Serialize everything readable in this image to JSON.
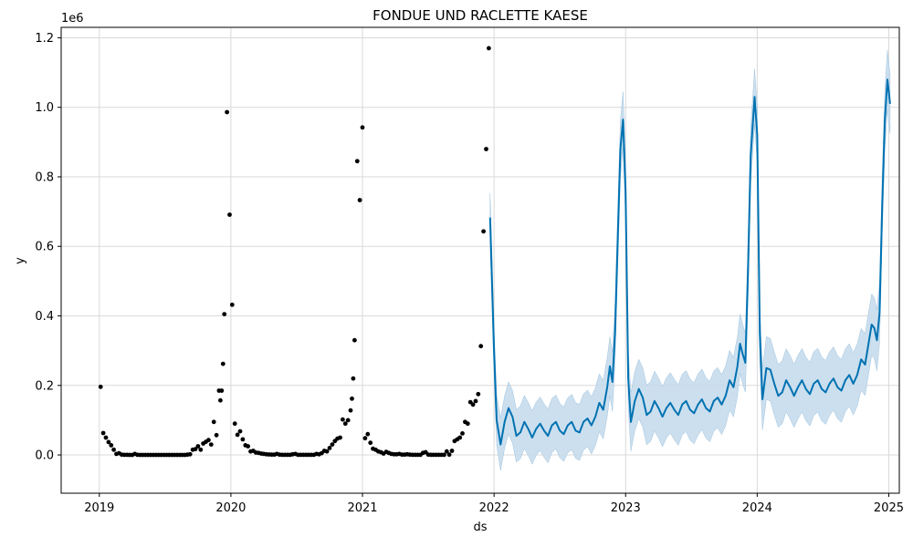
{
  "chart_data": {
    "type": "scatter",
    "title": "FONDUE UND RACLETTE KAESE",
    "xlabel": "ds",
    "ylabel": "y",
    "y_offset_label": "1e6",
    "x_tick_labels": [
      "2019",
      "2020",
      "2021",
      "2022",
      "2023",
      "2024",
      "2025"
    ],
    "x_ticks": [
      2019,
      2020,
      2021,
      2022,
      2023,
      2024,
      2025
    ],
    "y_tick_labels": [
      "0.0",
      "0.2",
      "0.4",
      "0.6",
      "0.8",
      "1.0",
      "1.2"
    ],
    "y_ticks": [
      0,
      200000,
      400000,
      600000,
      800000,
      1000000,
      1200000
    ],
    "xlim": [
      2018.71,
      2025.08
    ],
    "ylim": [
      -110000,
      1230000
    ],
    "grid": true,
    "colors": {
      "observed": "#000000",
      "forecast": "#0072B2",
      "interval": "#c7dcec"
    },
    "series": [
      {
        "kind": "observed",
        "style": "points",
        "points": [
          [
            2019.01,
            196000
          ],
          [
            2019.03,
            63000
          ],
          [
            2019.05,
            50000
          ],
          [
            2019.07,
            37000
          ],
          [
            2019.09,
            28000
          ],
          [
            2019.11,
            15000
          ],
          [
            2019.13,
            3000
          ],
          [
            2019.15,
            5000
          ],
          [
            2019.17,
            1000
          ],
          [
            2019.19,
            500
          ],
          [
            2019.21,
            300
          ],
          [
            2019.23,
            200
          ],
          [
            2019.25,
            100
          ],
          [
            2019.27,
            3000
          ],
          [
            2019.29,
            300
          ],
          [
            2019.31,
            100
          ],
          [
            2019.33,
            100
          ],
          [
            2019.35,
            100
          ],
          [
            2019.37,
            100
          ],
          [
            2019.39,
            100
          ],
          [
            2019.41,
            100
          ],
          [
            2019.43,
            100
          ],
          [
            2019.45,
            100
          ],
          [
            2019.47,
            100
          ],
          [
            2019.49,
            100
          ],
          [
            2019.51,
            100
          ],
          [
            2019.53,
            100
          ],
          [
            2019.55,
            100
          ],
          [
            2019.57,
            100
          ],
          [
            2019.59,
            100
          ],
          [
            2019.61,
            100
          ],
          [
            2019.63,
            100
          ],
          [
            2019.65,
            100
          ],
          [
            2019.67,
            1000
          ],
          [
            2019.69,
            2000
          ],
          [
            2019.71,
            15000
          ],
          [
            2019.73,
            17000
          ],
          [
            2019.75,
            25000
          ],
          [
            2019.77,
            15000
          ],
          [
            2019.79,
            33000
          ],
          [
            2019.81,
            38000
          ],
          [
            2019.83,
            43000
          ],
          [
            2019.85,
            30000
          ],
          [
            2019.87,
            95000
          ],
          [
            2019.89,
            57000
          ],
          [
            2019.91,
            185000
          ],
          [
            2019.92,
            157000
          ],
          [
            2019.93,
            185000
          ],
          [
            2019.94,
            262000
          ],
          [
            2019.95,
            405000
          ],
          [
            2019.97,
            986000
          ],
          [
            2019.99,
            691000
          ],
          [
            2020.01,
            432000
          ],
          [
            2020.03,
            90000
          ],
          [
            2020.05,
            58000
          ],
          [
            2020.07,
            68000
          ],
          [
            2020.09,
            45000
          ],
          [
            2020.11,
            28000
          ],
          [
            2020.13,
            25000
          ],
          [
            2020.15,
            10000
          ],
          [
            2020.17,
            12000
          ],
          [
            2020.19,
            7000
          ],
          [
            2020.21,
            6000
          ],
          [
            2020.23,
            4000
          ],
          [
            2020.25,
            3000
          ],
          [
            2020.27,
            2000
          ],
          [
            2020.29,
            1500
          ],
          [
            2020.31,
            1000
          ],
          [
            2020.33,
            1000
          ],
          [
            2020.35,
            3000
          ],
          [
            2020.37,
            1000
          ],
          [
            2020.39,
            500
          ],
          [
            2020.41,
            500
          ],
          [
            2020.43,
            500
          ],
          [
            2020.45,
            500
          ],
          [
            2020.47,
            2000
          ],
          [
            2020.49,
            3000
          ],
          [
            2020.51,
            500
          ],
          [
            2020.53,
            500
          ],
          [
            2020.55,
            500
          ],
          [
            2020.57,
            500
          ],
          [
            2020.59,
            500
          ],
          [
            2020.61,
            500
          ],
          [
            2020.63,
            500
          ],
          [
            2020.65,
            3000
          ],
          [
            2020.67,
            2000
          ],
          [
            2020.69,
            5000
          ],
          [
            2020.71,
            12000
          ],
          [
            2020.73,
            10000
          ],
          [
            2020.75,
            20000
          ],
          [
            2020.77,
            30000
          ],
          [
            2020.79,
            40000
          ],
          [
            2020.81,
            47000
          ],
          [
            2020.83,
            50000
          ],
          [
            2020.85,
            102000
          ],
          [
            2020.87,
            90000
          ],
          [
            2020.89,
            100000
          ],
          [
            2020.91,
            128000
          ],
          [
            2020.92,
            162000
          ],
          [
            2020.93,
            220000
          ],
          [
            2020.94,
            330000
          ],
          [
            2020.96,
            845000
          ],
          [
            2020.98,
            733000
          ],
          [
            2021.0,
            942000
          ],
          [
            2021.02,
            48000
          ],
          [
            2021.04,
            60000
          ],
          [
            2021.06,
            35000
          ],
          [
            2021.08,
            18000
          ],
          [
            2021.1,
            15000
          ],
          [
            2021.12,
            10000
          ],
          [
            2021.14,
            8000
          ],
          [
            2021.16,
            4000
          ],
          [
            2021.18,
            9000
          ],
          [
            2021.2,
            6000
          ],
          [
            2021.22,
            3000
          ],
          [
            2021.24,
            2000
          ],
          [
            2021.26,
            2000
          ],
          [
            2021.28,
            3000
          ],
          [
            2021.3,
            1000
          ],
          [
            2021.32,
            1000
          ],
          [
            2021.34,
            2000
          ],
          [
            2021.36,
            1000
          ],
          [
            2021.38,
            500
          ],
          [
            2021.4,
            500
          ],
          [
            2021.42,
            500
          ],
          [
            2021.44,
            500
          ],
          [
            2021.46,
            6000
          ],
          [
            2021.48,
            8000
          ],
          [
            2021.5,
            1000
          ],
          [
            2021.52,
            500
          ],
          [
            2021.54,
            500
          ],
          [
            2021.56,
            500
          ],
          [
            2021.58,
            500
          ],
          [
            2021.6,
            500
          ],
          [
            2021.62,
            500
          ],
          [
            2021.64,
            10000
          ],
          [
            2021.66,
            1000
          ],
          [
            2021.68,
            12000
          ],
          [
            2021.7,
            40000
          ],
          [
            2021.72,
            45000
          ],
          [
            2021.74,
            50000
          ],
          [
            2021.76,
            62000
          ],
          [
            2021.78,
            95000
          ],
          [
            2021.8,
            90000
          ],
          [
            2021.82,
            152000
          ],
          [
            2021.84,
            145000
          ],
          [
            2021.86,
            155000
          ],
          [
            2021.88,
            175000
          ],
          [
            2021.9,
            313000
          ],
          [
            2021.92,
            643000
          ],
          [
            2021.94,
            880000
          ],
          [
            2021.96,
            1170000
          ]
        ]
      },
      {
        "kind": "forecast",
        "style": "line",
        "points": [
          [
            2021.97,
            683000
          ],
          [
            2022.0,
            300000
          ],
          [
            2022.02,
            100000
          ],
          [
            2022.05,
            30000
          ],
          [
            2022.08,
            95000
          ],
          [
            2022.11,
            135000
          ],
          [
            2022.14,
            110000
          ],
          [
            2022.17,
            55000
          ],
          [
            2022.2,
            65000
          ],
          [
            2022.23,
            95000
          ],
          [
            2022.26,
            75000
          ],
          [
            2022.29,
            50000
          ],
          [
            2022.32,
            75000
          ],
          [
            2022.35,
            90000
          ],
          [
            2022.38,
            70000
          ],
          [
            2022.41,
            55000
          ],
          [
            2022.44,
            85000
          ],
          [
            2022.47,
            95000
          ],
          [
            2022.5,
            70000
          ],
          [
            2022.53,
            60000
          ],
          [
            2022.56,
            85000
          ],
          [
            2022.59,
            95000
          ],
          [
            2022.62,
            70000
          ],
          [
            2022.65,
            65000
          ],
          [
            2022.68,
            95000
          ],
          [
            2022.71,
            105000
          ],
          [
            2022.74,
            85000
          ],
          [
            2022.77,
            110000
          ],
          [
            2022.8,
            150000
          ],
          [
            2022.83,
            130000
          ],
          [
            2022.86,
            195000
          ],
          [
            2022.88,
            255000
          ],
          [
            2022.9,
            210000
          ],
          [
            2022.92,
            355000
          ],
          [
            2022.94,
            620000
          ],
          [
            2022.96,
            880000
          ],
          [
            2022.98,
            965000
          ],
          [
            2023.0,
            760000
          ],
          [
            2023.02,
            220000
          ],
          [
            2023.04,
            95000
          ],
          [
            2023.07,
            155000
          ],
          [
            2023.1,
            190000
          ],
          [
            2023.13,
            165000
          ],
          [
            2023.16,
            115000
          ],
          [
            2023.19,
            125000
          ],
          [
            2023.22,
            155000
          ],
          [
            2023.25,
            135000
          ],
          [
            2023.28,
            110000
          ],
          [
            2023.31,
            135000
          ],
          [
            2023.34,
            150000
          ],
          [
            2023.37,
            130000
          ],
          [
            2023.4,
            115000
          ],
          [
            2023.43,
            145000
          ],
          [
            2023.46,
            155000
          ],
          [
            2023.49,
            130000
          ],
          [
            2023.52,
            120000
          ],
          [
            2023.55,
            145000
          ],
          [
            2023.58,
            160000
          ],
          [
            2023.61,
            135000
          ],
          [
            2023.64,
            125000
          ],
          [
            2023.67,
            155000
          ],
          [
            2023.7,
            165000
          ],
          [
            2023.73,
            145000
          ],
          [
            2023.76,
            170000
          ],
          [
            2023.79,
            215000
          ],
          [
            2023.82,
            195000
          ],
          [
            2023.85,
            255000
          ],
          [
            2023.87,
            320000
          ],
          [
            2023.89,
            290000
          ],
          [
            2023.91,
            265000
          ],
          [
            2023.93,
            530000
          ],
          [
            2023.95,
            860000
          ],
          [
            2023.98,
            1030000
          ],
          [
            2024.0,
            920000
          ],
          [
            2024.02,
            350000
          ],
          [
            2024.04,
            160000
          ],
          [
            2024.07,
            250000
          ],
          [
            2024.1,
            245000
          ],
          [
            2024.13,
            205000
          ],
          [
            2024.16,
            170000
          ],
          [
            2024.19,
            180000
          ],
          [
            2024.22,
            215000
          ],
          [
            2024.25,
            195000
          ],
          [
            2024.28,
            170000
          ],
          [
            2024.31,
            195000
          ],
          [
            2024.34,
            215000
          ],
          [
            2024.37,
            190000
          ],
          [
            2024.4,
            175000
          ],
          [
            2024.43,
            205000
          ],
          [
            2024.46,
            215000
          ],
          [
            2024.49,
            190000
          ],
          [
            2024.52,
            180000
          ],
          [
            2024.55,
            205000
          ],
          [
            2024.58,
            220000
          ],
          [
            2024.61,
            195000
          ],
          [
            2024.64,
            185000
          ],
          [
            2024.67,
            215000
          ],
          [
            2024.7,
            230000
          ],
          [
            2024.73,
            205000
          ],
          [
            2024.76,
            230000
          ],
          [
            2024.79,
            275000
          ],
          [
            2024.82,
            260000
          ],
          [
            2024.85,
            330000
          ],
          [
            2024.87,
            375000
          ],
          [
            2024.89,
            365000
          ],
          [
            2024.91,
            330000
          ],
          [
            2024.93,
            410000
          ],
          [
            2024.95,
            720000
          ],
          [
            2024.97,
            960000
          ],
          [
            2024.99,
            1080000
          ],
          [
            2025.01,
            1010000
          ]
        ]
      }
    ],
    "interval_width": [
      [
        2021.97,
        70000
      ],
      [
        2022.0,
        70000
      ],
      [
        2022.05,
        75000
      ],
      [
        2022.5,
        78000
      ],
      [
        2022.9,
        85000
      ],
      [
        2022.98,
        80000
      ],
      [
        2023.0,
        80000
      ],
      [
        2023.05,
        85000
      ],
      [
        2023.5,
        88000
      ],
      [
        2023.9,
        85000
      ],
      [
        2023.98,
        80000
      ],
      [
        2024.0,
        80000
      ],
      [
        2024.05,
        90000
      ],
      [
        2024.5,
        92000
      ],
      [
        2024.9,
        88000
      ],
      [
        2024.99,
        85000
      ],
      [
        2025.01,
        85000
      ]
    ]
  }
}
